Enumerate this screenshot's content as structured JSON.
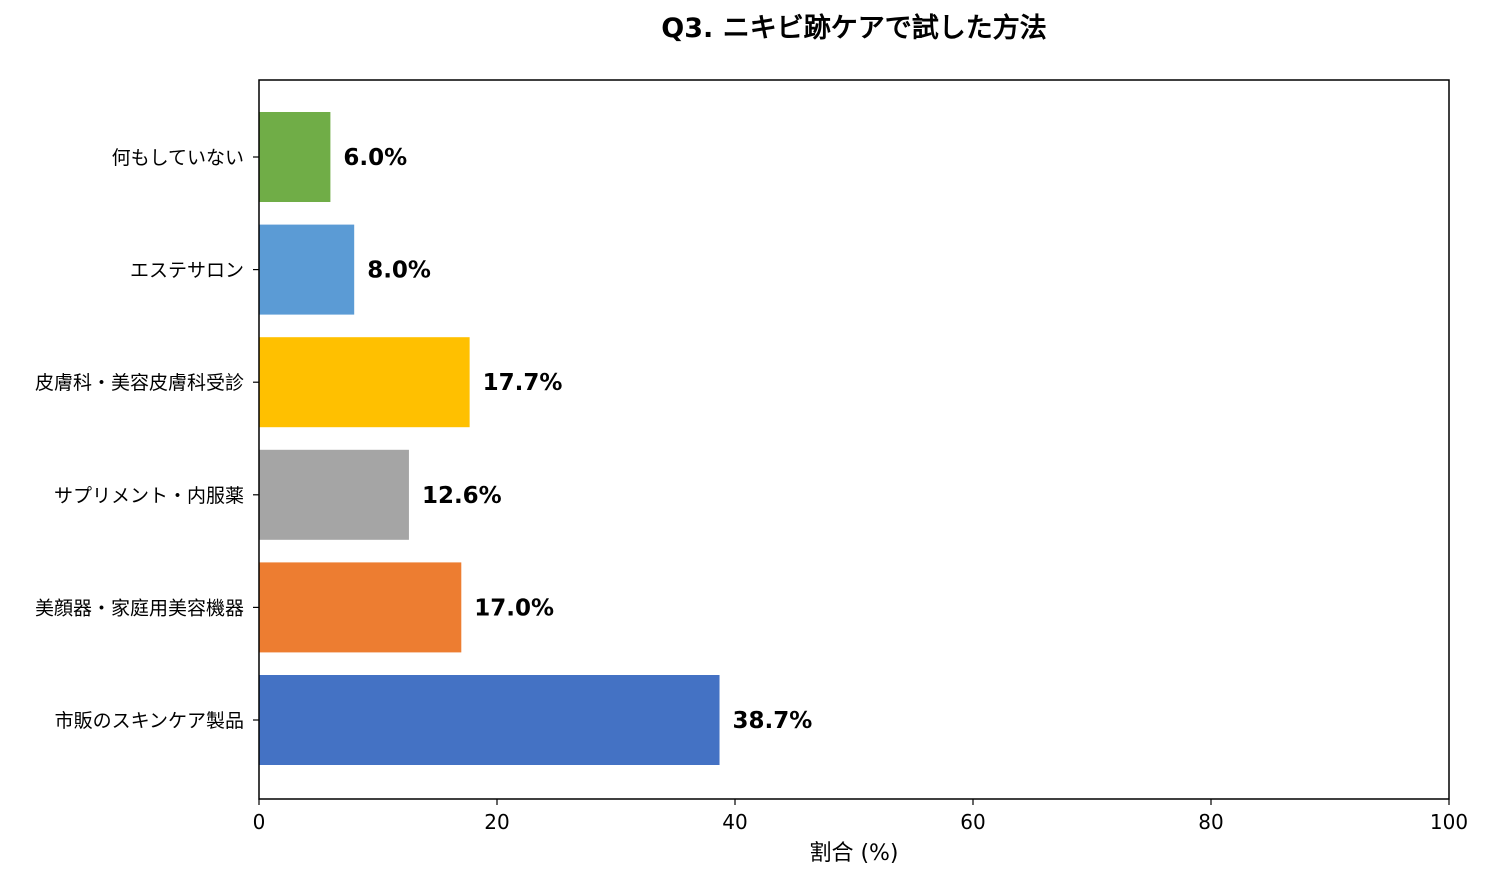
{
  "chart_data": {
    "type": "bar",
    "orientation": "horizontal",
    "title": "Q3. ニキビ跡ケアで試した方法",
    "xlabel": "割合 (%)",
    "ylabel": "",
    "xlim": [
      0,
      100
    ],
    "x_ticks": [
      0,
      20,
      40,
      60,
      80,
      100
    ],
    "grid": false,
    "legend": "none",
    "categories": [
      "市販のスキンケア製品",
      "美顔器・家庭用美容機器",
      "サプリメント・内服薬",
      "皮膚科・美容皮膚科受診",
      "エステサロン",
      "何もしていない"
    ],
    "values": [
      38.7,
      17.0,
      12.6,
      17.7,
      8.0,
      6.0
    ],
    "data_labels": [
      "38.7%",
      "17.0%",
      "12.6%",
      "17.7%",
      "8.0%",
      "6.0%"
    ],
    "colors": [
      "#4472c4",
      "#ed7d31",
      "#a5a5a5",
      "#ffc000",
      "#5b9bd5",
      "#70ad47"
    ]
  }
}
